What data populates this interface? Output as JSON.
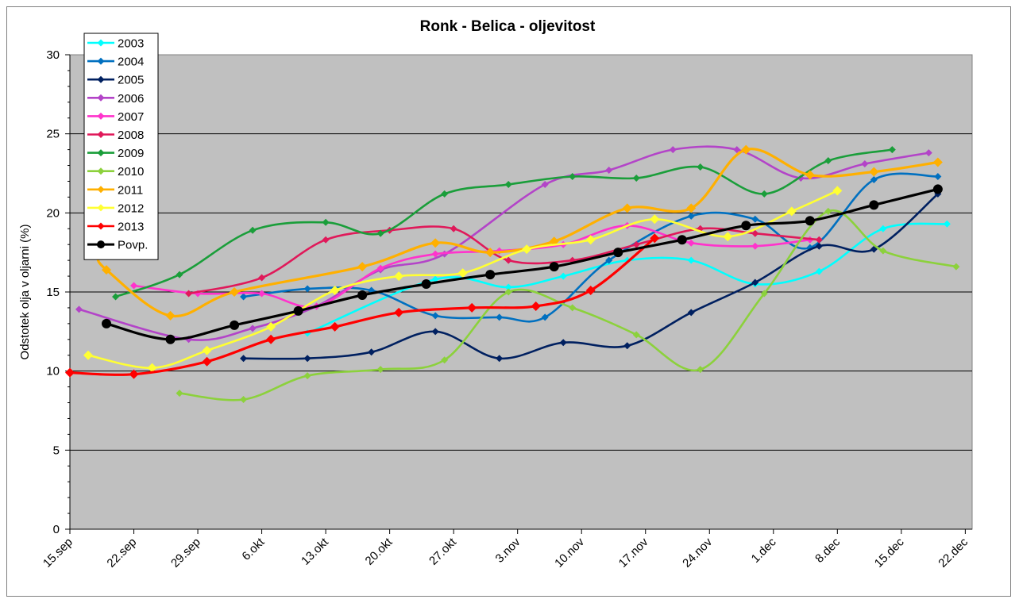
{
  "chart_data": {
    "type": "line",
    "title": "Ronk - Belica - oljevitost",
    "xlabel": "",
    "ylabel": "Odstotek olja v oljarni (%)",
    "ylim": [
      0,
      30
    ],
    "yticks": [
      0,
      5,
      10,
      15,
      20,
      25,
      30
    ],
    "x_is_date": true,
    "x_ticks": [
      "15.sep",
      "22.sep",
      "29.sep",
      "6.okt",
      "13.okt",
      "20.okt",
      "27.okt",
      "3.nov",
      "10.nov",
      "17.nov",
      "24.nov",
      "1.dec",
      "8.dec",
      "15.dec",
      "22.dec"
    ],
    "grid": "horizontal major",
    "plot_background": "#c0c0c0",
    "legend_position": "top-left",
    "series": [
      {
        "name": "2003",
        "color": "#00ffff",
        "marker": "diamond",
        "x": [
          "11.okt",
          "25.okt",
          "2.nov",
          "8.nov",
          "15.nov",
          "22.nov",
          "29.nov",
          "6.dec",
          "13.dec",
          "20.dec"
        ],
        "y": [
          12.4,
          15.8,
          15.3,
          16.0,
          17.0,
          17.0,
          15.5,
          16.3,
          19.0,
          19.3
        ]
      },
      {
        "name": "2004",
        "color": "#0070c0",
        "marker": "diamond",
        "x": [
          "4.okt",
          "11.okt",
          "18.okt",
          "25.okt",
          "1.nov",
          "6.nov",
          "13.nov",
          "22.nov",
          "29.nov",
          "5.dec",
          "12.dec",
          "19.dec"
        ],
        "y": [
          14.7,
          15.2,
          15.1,
          13.5,
          13.4,
          13.4,
          17.0,
          19.8,
          19.6,
          17.8,
          22.1,
          22.3
        ]
      },
      {
        "name": "2005",
        "color": "#002060",
        "marker": "diamond",
        "x": [
          "4.okt",
          "11.okt",
          "18.okt",
          "25.okt",
          "1.nov",
          "8.nov",
          "15.nov",
          "22.nov",
          "29.nov",
          "6.dec",
          "12.dec",
          "19.dec"
        ],
        "y": [
          10.8,
          10.8,
          11.2,
          12.5,
          10.8,
          11.8,
          11.6,
          13.7,
          15.6,
          17.9,
          17.7,
          21.2
        ]
      },
      {
        "name": "2006",
        "color": "#b344c8",
        "marker": "diamond",
        "x": [
          "16.sep",
          "28.sep",
          "5.okt",
          "12.okt",
          "19.okt",
          "26.okt",
          "6.nov",
          "13.nov",
          "20.nov",
          "27.nov",
          "4.dec",
          "11.dec",
          "18.dec"
        ],
        "y": [
          13.9,
          12.0,
          12.7,
          14.1,
          16.4,
          17.4,
          21.8,
          22.7,
          24.0,
          24.0,
          22.2,
          23.1,
          23.8
        ]
      },
      {
        "name": "2007",
        "color": "#ff33cc",
        "marker": "diamond",
        "x": [
          "22.sep",
          "29.sep",
          "6.okt",
          "12.okt",
          "19.okt",
          "25.okt",
          "1.nov",
          "8.nov",
          "15.nov",
          "22.nov",
          "29.nov",
          "5.dec"
        ],
        "y": [
          15.4,
          14.9,
          14.9,
          14.1,
          16.5,
          17.4,
          17.6,
          18.0,
          19.2,
          18.1,
          17.9,
          18.3
        ]
      },
      {
        "name": "2008",
        "color": "#e0195a",
        "marker": "diamond",
        "x": [
          "28.sep",
          "6.okt",
          "13.okt",
          "20.okt",
          "27.okt",
          "2.nov",
          "9.nov",
          "16.nov",
          "23.nov",
          "29.nov",
          "6.dec"
        ],
        "y": [
          14.9,
          15.9,
          18.3,
          18.9,
          19.0,
          17.0,
          17.0,
          18.0,
          19.0,
          18.7,
          18.3
        ]
      },
      {
        "name": "2009",
        "color": "#1a9e3a",
        "marker": "diamond",
        "x": [
          "20.sep",
          "27.sep",
          "5.okt",
          "13.okt",
          "19.okt",
          "26.okt",
          "2.nov",
          "9.nov",
          "16.nov",
          "23.nov",
          "30.nov",
          "7.dec",
          "14.dec"
        ],
        "y": [
          14.7,
          16.1,
          18.9,
          19.4,
          18.7,
          21.2,
          21.8,
          22.3,
          22.2,
          22.9,
          21.2,
          23.3,
          24.0
        ]
      },
      {
        "name": "2010",
        "color": "#8cd13c",
        "marker": "diamond",
        "x": [
          "27.sep",
          "4.okt",
          "11.okt",
          "19.okt",
          "26.okt",
          "2.nov",
          "9.nov",
          "16.nov",
          "23.nov",
          "30.nov",
          "7.dec",
          "13.dec",
          "21.dec"
        ],
        "y": [
          8.6,
          8.2,
          9.7,
          10.1,
          10.7,
          15.0,
          14.0,
          12.3,
          10.1,
          14.9,
          20.1,
          17.6,
          16.6
        ]
      },
      {
        "name": "2011",
        "color": "#ffb000",
        "marker": "diamond",
        "x": [
          "18.sep",
          "19.sep",
          "26.sep",
          "3.okt",
          "17.okt",
          "25.okt",
          "31.okt",
          "7.nov",
          "15.nov",
          "22.nov",
          "28.nov",
          "5.dec",
          "12.dec",
          "19.dec"
        ],
        "y": [
          17.3,
          16.4,
          13.5,
          15.0,
          16.6,
          18.1,
          17.5,
          18.2,
          20.3,
          20.3,
          24.0,
          22.4,
          22.6,
          23.2
        ]
      },
      {
        "name": "2012",
        "color": "#ffff33",
        "marker": "diamond",
        "x": [
          "17.sep",
          "24.sep",
          "30.sep",
          "7.okt",
          "14.okt",
          "21.okt",
          "28.okt",
          "4.nov",
          "11.nov",
          "18.nov",
          "26.nov",
          "3.dec",
          "8.dec"
        ],
        "y": [
          11.0,
          10.2,
          11.3,
          12.8,
          15.1,
          16.0,
          16.2,
          17.7,
          18.3,
          19.6,
          18.5,
          20.1,
          21.4
        ]
      },
      {
        "name": "2013",
        "color": "#ff0000",
        "marker": "diamond",
        "x": [
          "15.sep",
          "22.sep",
          "30.sep",
          "7.okt",
          "14.okt",
          "21.okt",
          "29.okt",
          "5.nov",
          "11.nov",
          "18.nov"
        ],
        "y": [
          9.9,
          9.8,
          10.6,
          12.0,
          12.8,
          13.7,
          14.0,
          14.1,
          15.1,
          18.4
        ]
      },
      {
        "name": "Povp.",
        "color": "#000000",
        "marker": "circle",
        "x": [
          "19.sep",
          "26.sep",
          "3.okt",
          "10.okt",
          "17.okt",
          "24.okt",
          "31.okt",
          "7.nov",
          "14.nov",
          "21.nov",
          "28.nov",
          "5.dec",
          "12.dec",
          "19.dec"
        ],
        "y": [
          13.0,
          12.0,
          12.9,
          13.8,
          14.8,
          15.5,
          16.1,
          16.6,
          17.5,
          18.3,
          19.2,
          19.5,
          20.5,
          21.5
        ]
      }
    ]
  }
}
